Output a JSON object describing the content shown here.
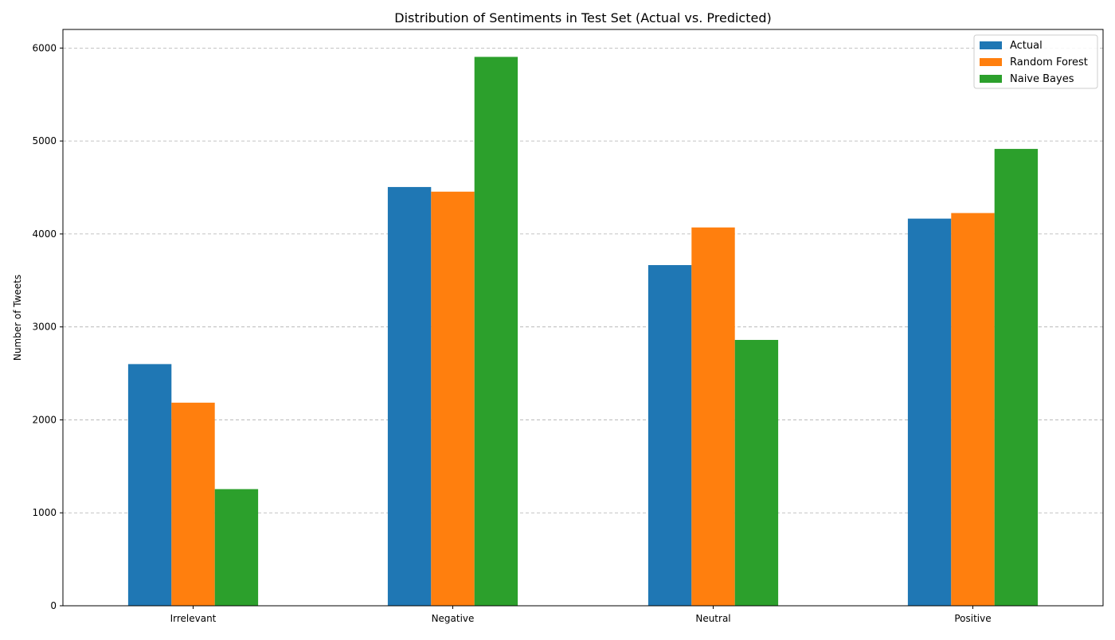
{
  "chart_data": {
    "type": "bar",
    "title": "Distribution of Sentiments in Test Set (Actual vs. Predicted)",
    "xlabel": "",
    "ylabel": "Number of Tweets",
    "categories": [
      "Irrelevant",
      "Negative",
      "Neutral",
      "Positive"
    ],
    "series": [
      {
        "name": "Actual",
        "color": "#1f77b4",
        "values": [
          2600,
          4505,
          3665,
          4165
        ]
      },
      {
        "name": "Random Forest",
        "color": "#ff7f0e",
        "values": [
          2185,
          4455,
          4070,
          4225
        ]
      },
      {
        "name": "Naive Bayes",
        "color": "#2ca02c",
        "values": [
          1255,
          5905,
          2860,
          4915
        ]
      }
    ],
    "ylim": [
      0,
      6200
    ],
    "yticks": [
      0,
      1000,
      2000,
      3000,
      4000,
      5000,
      6000
    ],
    "grid": "y-dashed",
    "legend_position": "top-right"
  }
}
